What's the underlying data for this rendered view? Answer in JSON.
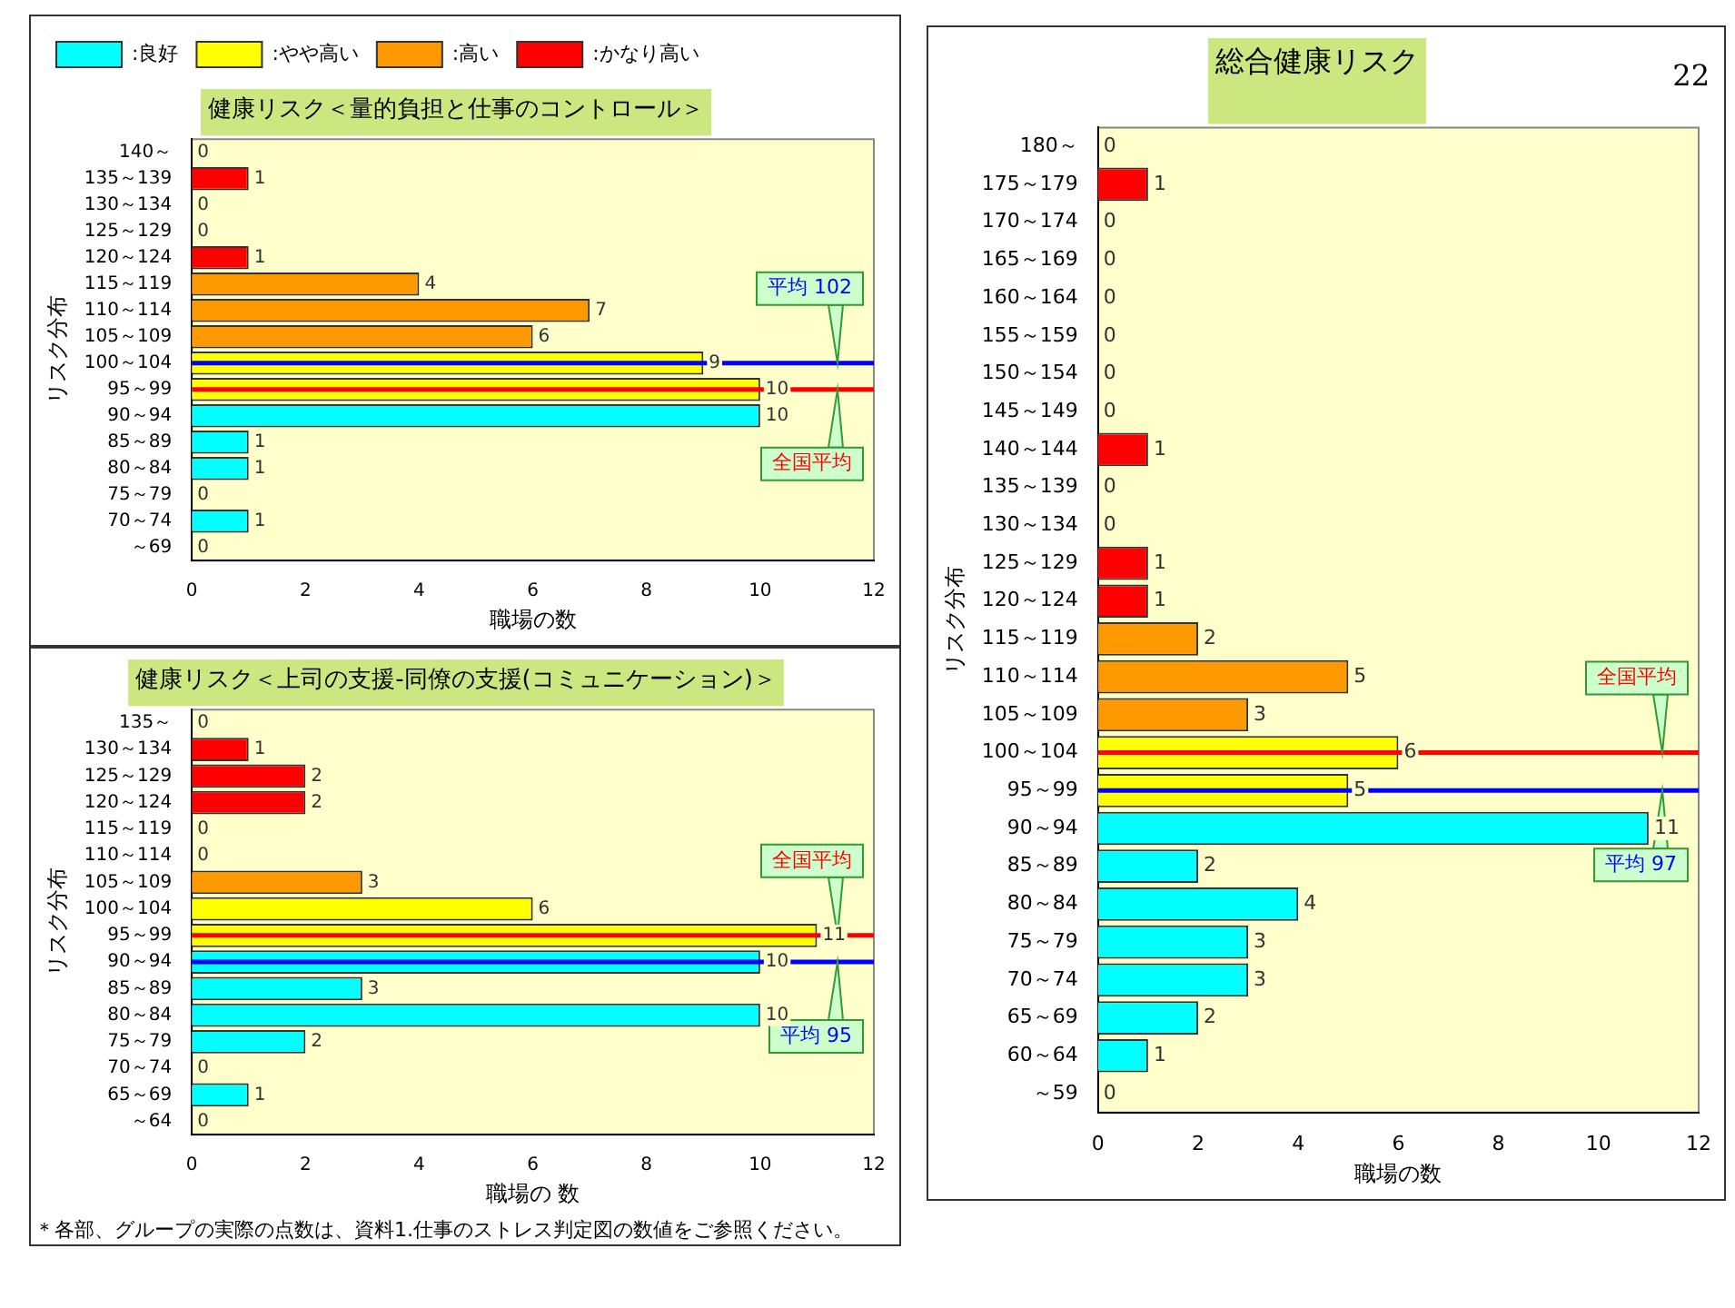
{
  "chart_data": [
    {
      "type": "bar",
      "orientation": "horizontal",
      "stacked": true,
      "title": "健康リスク＜量的負担と仕事のコントロール＞",
      "xlabel": "職場の数",
      "ylabel": "リスク分布",
      "categories": [
        "140～",
        "135～139",
        "130～134",
        "125～129",
        "120～124",
        "115～119",
        "110～114",
        "105～109",
        "100～104",
        "95～99",
        "90～94",
        "85～89",
        "80～84",
        "75～79",
        "70～74",
        "～69"
      ],
      "series": [
        {
          "name": ":良好",
          "color": "#00ffff",
          "values": [
            null,
            null,
            null,
            null,
            null,
            null,
            null,
            null,
            null,
            null,
            10,
            1,
            1,
            0,
            1,
            0
          ]
        },
        {
          "name": ":やや高い",
          "color": "#ffff00",
          "values": [
            null,
            null,
            null,
            null,
            null,
            null,
            null,
            null,
            9,
            10,
            null,
            null,
            null,
            null,
            null,
            null
          ]
        },
        {
          "name": ":高い",
          "color": "#ff9900",
          "values": [
            null,
            null,
            null,
            null,
            null,
            4,
            7,
            6,
            null,
            null,
            null,
            null,
            null,
            null,
            null,
            null
          ]
        },
        {
          "name": ":かなり高い",
          "color": "#ff0000",
          "values": [
            0,
            1,
            0,
            0,
            1,
            null,
            null,
            null,
            null,
            null,
            null,
            null,
            null,
            null,
            null,
            null
          ]
        }
      ],
      "xlim": [
        0,
        12
      ],
      "xticks": [
        0,
        2,
        4,
        6,
        8,
        10,
        12
      ],
      "grid": false,
      "legend": "top left",
      "data_labels": true,
      "ref_lines": [
        {
          "axis": "y",
          "value": "100～104",
          "label": "平均 102",
          "color": "#0000ff"
        },
        {
          "axis": "y",
          "value": "95～99",
          "label": "全国平均",
          "color": "#ff0000"
        }
      ]
    },
    {
      "type": "bar",
      "orientation": "horizontal",
      "stacked": true,
      "title": "健康リスク＜上司の支援-同僚の支援(コミュニケーション)＞",
      "xlabel": "職場の 数",
      "ylabel": "リスク分布",
      "categories": [
        "135～",
        "130～134",
        "125～129",
        "120～124",
        "115～119",
        "110～114",
        "105～109",
        "100～104",
        "95～99",
        "90～94",
        "85～89",
        "80～84",
        "75～79",
        "70～74",
        "65～69",
        "～64"
      ],
      "series": [
        {
          "color": "#00ffff",
          "values": [
            null,
            null,
            null,
            null,
            null,
            null,
            null,
            null,
            null,
            10,
            3,
            10,
            2,
            0,
            1,
            0
          ]
        },
        {
          "color": "#ffff00",
          "values": [
            null,
            null,
            null,
            null,
            null,
            null,
            null,
            6,
            11,
            null,
            null,
            null,
            null,
            null,
            null,
            null
          ]
        },
        {
          "color": "#ff9900",
          "values": [
            null,
            null,
            null,
            null,
            0,
            0,
            3,
            null,
            null,
            null,
            null,
            null,
            null,
            null,
            null,
            null
          ]
        },
        {
          "color": "#ff0000",
          "values": [
            0,
            1,
            2,
            2,
            null,
            null,
            null,
            null,
            null,
            null,
            null,
            null,
            null,
            null,
            null,
            null
          ]
        }
      ],
      "xlim": [
        0,
        12
      ],
      "xticks": [
        0,
        2,
        4,
        6,
        8,
        10,
        12
      ],
      "grid": false,
      "legend": false,
      "data_labels": true,
      "ref_lines": [
        {
          "axis": "y",
          "value": "95～99",
          "label": "全国平均",
          "color": "#ff0000"
        },
        {
          "axis": "y",
          "value": "90～94",
          "label": "平均 95",
          "color": "#0000ff"
        }
      ],
      "annotations": [
        "＊各部、グループの実際の点数は、資料1.仕事のストレス判定図の数値をご参照ください。"
      ]
    },
    {
      "type": "bar",
      "orientation": "horizontal",
      "stacked": true,
      "title": "総合健康リスク",
      "xlabel": "職場の数",
      "ylabel": "リスク分布",
      "categories": [
        "180～",
        "175～179",
        "170～174",
        "165～169",
        "160～164",
        "155～159",
        "150～154",
        "145～149",
        "140～144",
        "135～139",
        "130～134",
        "125～129",
        "120～124",
        "115～119",
        "110～114",
        "105～109",
        "100～104",
        "95～99",
        "90～94",
        "85～89",
        "80～84",
        "75～79",
        "70～74",
        "65～69",
        "60～64",
        "～59"
      ],
      "series": [
        {
          "color": "#00ffff",
          "values": [
            null,
            null,
            null,
            null,
            null,
            null,
            null,
            null,
            null,
            null,
            null,
            null,
            null,
            null,
            null,
            null,
            null,
            null,
            11,
            2,
            4,
            3,
            3,
            2,
            1,
            0
          ]
        },
        {
          "color": "#ffff00",
          "values": [
            null,
            null,
            null,
            null,
            null,
            null,
            null,
            null,
            null,
            null,
            null,
            null,
            null,
            null,
            null,
            null,
            6,
            5,
            null,
            null,
            null,
            null,
            null,
            null,
            null,
            null
          ]
        },
        {
          "color": "#ff9900",
          "values": [
            null,
            null,
            null,
            null,
            null,
            null,
            null,
            null,
            null,
            null,
            null,
            null,
            null,
            2,
            5,
            3,
            null,
            null,
            null,
            null,
            null,
            null,
            null,
            null,
            null,
            null
          ]
        },
        {
          "color": "#ff0000",
          "values": [
            0,
            1,
            0,
            0,
            0,
            0,
            0,
            0,
            1,
            0,
            0,
            1,
            1,
            null,
            null,
            null,
            null,
            null,
            null,
            null,
            null,
            null,
            null,
            null,
            null,
            null
          ]
        }
      ],
      "xlim": [
        0,
        12
      ],
      "xticks": [
        0,
        2,
        4,
        6,
        8,
        10,
        12
      ],
      "grid": false,
      "legend": false,
      "data_labels": true,
      "ref_lines": [
        {
          "axis": "y",
          "value": "100～104",
          "label": "全国平均",
          "color": "#ff0000"
        },
        {
          "axis": "y",
          "value": "95～99",
          "label": "平均 97",
          "color": "#0000ff"
        }
      ],
      "annotations": [
        "22"
      ]
    }
  ]
}
